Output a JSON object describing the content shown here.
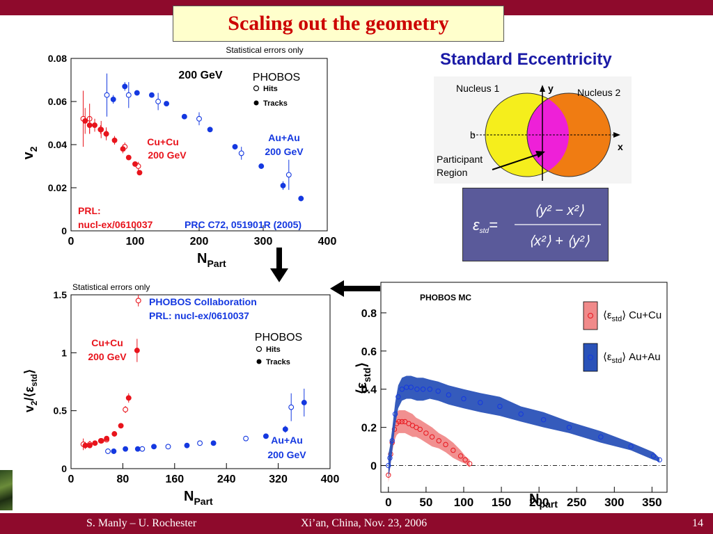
{
  "slide": {
    "title": "Scaling out the geometry",
    "eccentricity_heading": "Standard Eccentricity",
    "footer_left": "S. Manly – U. Rochester",
    "footer_center": "Xi’an, China, Nov. 23, 2006",
    "footer_right": "14",
    "arrow_down": "down-arrow",
    "arrow_left": "left-arrow"
  },
  "diagram": {
    "nucleus1": "Nucleus 1",
    "nucleus2": "Nucleus 2",
    "axis_y": "y",
    "axis_x": "x",
    "impact": "b",
    "participant_1": "Participant",
    "participant_2": "Region",
    "colors": {
      "nucleus1": "#f5ee1c",
      "nucleus2": "#f07c12",
      "overlap": "#ee20d8"
    }
  },
  "formula": {
    "lhs": "ε",
    "lhs_sub": "std",
    "eq": "=",
    "numerator": "⟨y² − x²⟩",
    "denominator": "⟨x²⟩ + ⟨y²⟩"
  },
  "chart_data": [
    {
      "type": "scatter",
      "note": "Statistical errors only",
      "labels": {
        "energy": "200 GeV",
        "experiment": "PHOBOS",
        "hits": "Hits",
        "tracks": "Tracks",
        "cucu_1": "Cu+Cu",
        "cucu_2": "200 GeV",
        "auau_1": "Au+Au",
        "auau_2": "200 GeV",
        "ref1_1": "PRL:",
        "ref1_2": "nucl-ex/0610037",
        "ref2": "PRC C72, 051901R (2005)"
      },
      "xlabel": "N",
      "xlabel_sub": "Part",
      "ylabel": "v",
      "ylabel_sub": "2",
      "xlim": [
        0,
        400
      ],
      "ylim": [
        0,
        0.08
      ],
      "xticks": [
        "0",
        "100",
        "200",
        "300",
        "400"
      ],
      "yticks": [
        "0",
        "0.02",
        "0.04",
        "0.06",
        "0.08"
      ],
      "colors": {
        "cucu": "#e8141c",
        "auau": "#1438e0"
      },
      "series": [
        {
          "name": "Cu+Cu Hits",
          "marker": "open",
          "color": "cucu",
          "points": [
            [
              19,
              0.052,
              0.013
            ],
            [
              29,
              0.052,
              0.007
            ],
            [
              47,
              0.047,
              0.004
            ],
            [
              55,
              0.045,
              0.003
            ],
            [
              84,
              0.039,
              0.002
            ],
            [
              105,
              0.03,
              0.002
            ]
          ]
        },
        {
          "name": "Cu+Cu Tracks",
          "marker": "filled",
          "color": "cucu",
          "points": [
            [
              22,
              0.051,
              0.006
            ],
            [
              29,
              0.049,
              0.004
            ],
            [
              37,
              0.049,
              0.003
            ],
            [
              46,
              0.047,
              0.002
            ],
            [
              55,
              0.045,
              0.002
            ],
            [
              68,
              0.042,
              0.002
            ],
            [
              81,
              0.038,
              0.002
            ],
            [
              90,
              0.034,
              0.001
            ],
            [
              100,
              0.031,
              0.001
            ],
            [
              107,
              0.027,
              0.001
            ]
          ]
        },
        {
          "name": "Au+Au Hits",
          "marker": "open",
          "color": "auau",
          "points": [
            [
              56,
              0.063,
              0.01
            ],
            [
              90,
              0.063,
              0.006
            ],
            [
              136,
              0.06,
              0.004
            ],
            [
              200,
              0.052,
              0.003
            ],
            [
              266,
              0.036,
              0.003
            ],
            [
              340,
              0.026,
              0.007
            ]
          ]
        },
        {
          "name": "Au+Au Tracks",
          "marker": "filled",
          "color": "auau",
          "points": [
            [
              66,
              0.061,
              0.002
            ],
            [
              84,
              0.067,
              0.002
            ],
            [
              103,
              0.064,
              0.001
            ],
            [
              126,
              0.063,
              0.001
            ],
            [
              149,
              0.059,
              0.001
            ],
            [
              177,
              0.053,
              0.001
            ],
            [
              217,
              0.047,
              0.001
            ],
            [
              256,
              0.039,
              0.001
            ],
            [
              297,
              0.03,
              0.001
            ],
            [
              331,
              0.021,
              0.002
            ],
            [
              359,
              0.015,
              0.001
            ]
          ]
        }
      ]
    },
    {
      "type": "scatter",
      "note": "Statistical errors only",
      "labels": {
        "collab_1": "PHOBOS Collaboration",
        "collab_2": "PRL: nucl-ex/0610037",
        "experiment": "PHOBOS",
        "hits": "Hits",
        "tracks": "Tracks",
        "cucu_1": "Cu+Cu",
        "cucu_2": "200 GeV",
        "auau_1": "Au+Au",
        "auau_2": "200 GeV"
      },
      "xlabel": "N",
      "xlabel_sub": "Part",
      "ylabel": "v",
      "ylabel_sub": "2",
      "ylabel_tail": "/⟨ε",
      "ylabel_tail_sub": "std",
      "ylabel_end": "⟩",
      "xlim": [
        0,
        400
      ],
      "ylim": [
        0,
        1.5
      ],
      "xticks": [
        "0",
        "80",
        "160",
        "240",
        "320",
        "400"
      ],
      "yticks": [
        "0",
        "0.5",
        "1",
        "1.5"
      ],
      "colors": {
        "cucu": "#e8141c",
        "auau": "#1438e0"
      },
      "series": [
        {
          "name": "Cu+Cu Hits",
          "marker": "open",
          "color": "cucu",
          "points": [
            [
              19,
              0.21,
              0.05
            ],
            [
              29,
              0.21,
              0.03
            ],
            [
              47,
              0.24,
              0.02
            ],
            [
              55,
              0.25,
              0.02
            ],
            [
              84,
              0.51,
              0.03
            ],
            [
              104,
              1.45,
              0.05
            ]
          ]
        },
        {
          "name": "Cu+Cu Tracks",
          "marker": "filled",
          "color": "cucu",
          "points": [
            [
              22,
              0.2,
              0.03
            ],
            [
              29,
              0.2,
              0.02
            ],
            [
              37,
              0.22,
              0.02
            ],
            [
              46,
              0.24,
              0.02
            ],
            [
              55,
              0.26,
              0.02
            ],
            [
              67,
              0.3,
              0.02
            ],
            [
              77,
              0.37,
              0.02
            ],
            [
              89,
              0.61,
              0.04
            ],
            [
              102,
              1.02,
              0.1
            ]
          ]
        },
        {
          "name": "Au+Au Hits",
          "marker": "open",
          "color": "auau",
          "points": [
            [
              57,
              0.15,
              0.02
            ],
            [
              110,
              0.17,
              0.01
            ],
            [
              150,
              0.19,
              0.01
            ],
            [
              199,
              0.22,
              0.01
            ],
            [
              270,
              0.26,
              0.02
            ],
            [
              340,
              0.53,
              0.12
            ]
          ]
        },
        {
          "name": "Au+Au Tracks",
          "marker": "filled",
          "color": "auau",
          "points": [
            [
              66,
              0.15,
              0.01
            ],
            [
              84,
              0.17,
              0.01
            ],
            [
              103,
              0.17,
              0.01
            ],
            [
              128,
              0.19,
              0.01
            ],
            [
              179,
              0.2,
              0.01
            ],
            [
              220,
              0.22,
              0.01
            ],
            [
              301,
              0.28,
              0.01
            ],
            [
              331,
              0.34,
              0.03
            ],
            [
              360,
              0.57,
              0.12
            ]
          ]
        }
      ]
    },
    {
      "type": "line",
      "labels": {
        "mc": "PHOBOS MC",
        "leg_lhs": "⟨ε",
        "leg_sub": "std",
        "leg_rhs": "⟩",
        "cucu": "Cu+Cu",
        "auau": "Au+Au"
      },
      "xlabel": "N",
      "xlabel_sub": "part",
      "ylabel": "⟨ε",
      "ylabel_sub": "std",
      "ylabel_end": "⟩",
      "xlim": [
        -10,
        370
      ],
      "ylim": [
        -0.14,
        0.96
      ],
      "xticks": [
        "0",
        "50",
        "100",
        "150",
        "200",
        "250",
        "300",
        "350"
      ],
      "yticks": [
        "0",
        "0.2",
        "0.4",
        "0.6",
        "0.8"
      ],
      "colors": {
        "cucu_band": "#f08a8a",
        "cucu_line": "#e8141c",
        "auau_band": "#2a52b8",
        "auau_line": "#1438e0"
      },
      "series": [
        {
          "name": "Cu+Cu",
          "x": [
            0,
            3,
            5,
            8,
            11,
            14,
            18,
            22,
            27,
            32,
            37,
            42,
            50,
            58,
            67,
            76,
            86,
            96,
            102,
            108
          ],
          "y": [
            -0.05,
            0.06,
            0.12,
            0.19,
            0.22,
            0.23,
            0.23,
            0.23,
            0.22,
            0.21,
            0.2,
            0.19,
            0.17,
            0.15,
            0.13,
            0.11,
            0.08,
            0.05,
            0.03,
            0.01
          ],
          "band": [
            0.04,
            0.05,
            0.05,
            0.06,
            0.06,
            0.06,
            0.06,
            0.06,
            0.06,
            0.06,
            0.05,
            0.05,
            0.05,
            0.05,
            0.04,
            0.04,
            0.04,
            0.03,
            0.02,
            0.02
          ]
        },
        {
          "name": "Au+Au",
          "x": [
            0,
            2,
            5,
            9,
            13,
            18,
            24,
            30,
            38,
            46,
            55,
            66,
            80,
            100,
            122,
            148,
            176,
            206,
            240,
            282,
            322,
            352,
            360
          ],
          "y": [
            0.0,
            0.04,
            0.13,
            0.27,
            0.36,
            0.4,
            0.41,
            0.41,
            0.4,
            0.4,
            0.4,
            0.39,
            0.37,
            0.35,
            0.33,
            0.31,
            0.27,
            0.24,
            0.2,
            0.15,
            0.1,
            0.05,
            0.03
          ],
          "band": [
            0.06,
            0.06,
            0.06,
            0.06,
            0.06,
            0.06,
            0.06,
            0.06,
            0.06,
            0.06,
            0.05,
            0.05,
            0.05,
            0.05,
            0.05,
            0.05,
            0.04,
            0.04,
            0.03,
            0.03,
            0.02,
            0.02,
            0.01
          ]
        }
      ]
    }
  ]
}
